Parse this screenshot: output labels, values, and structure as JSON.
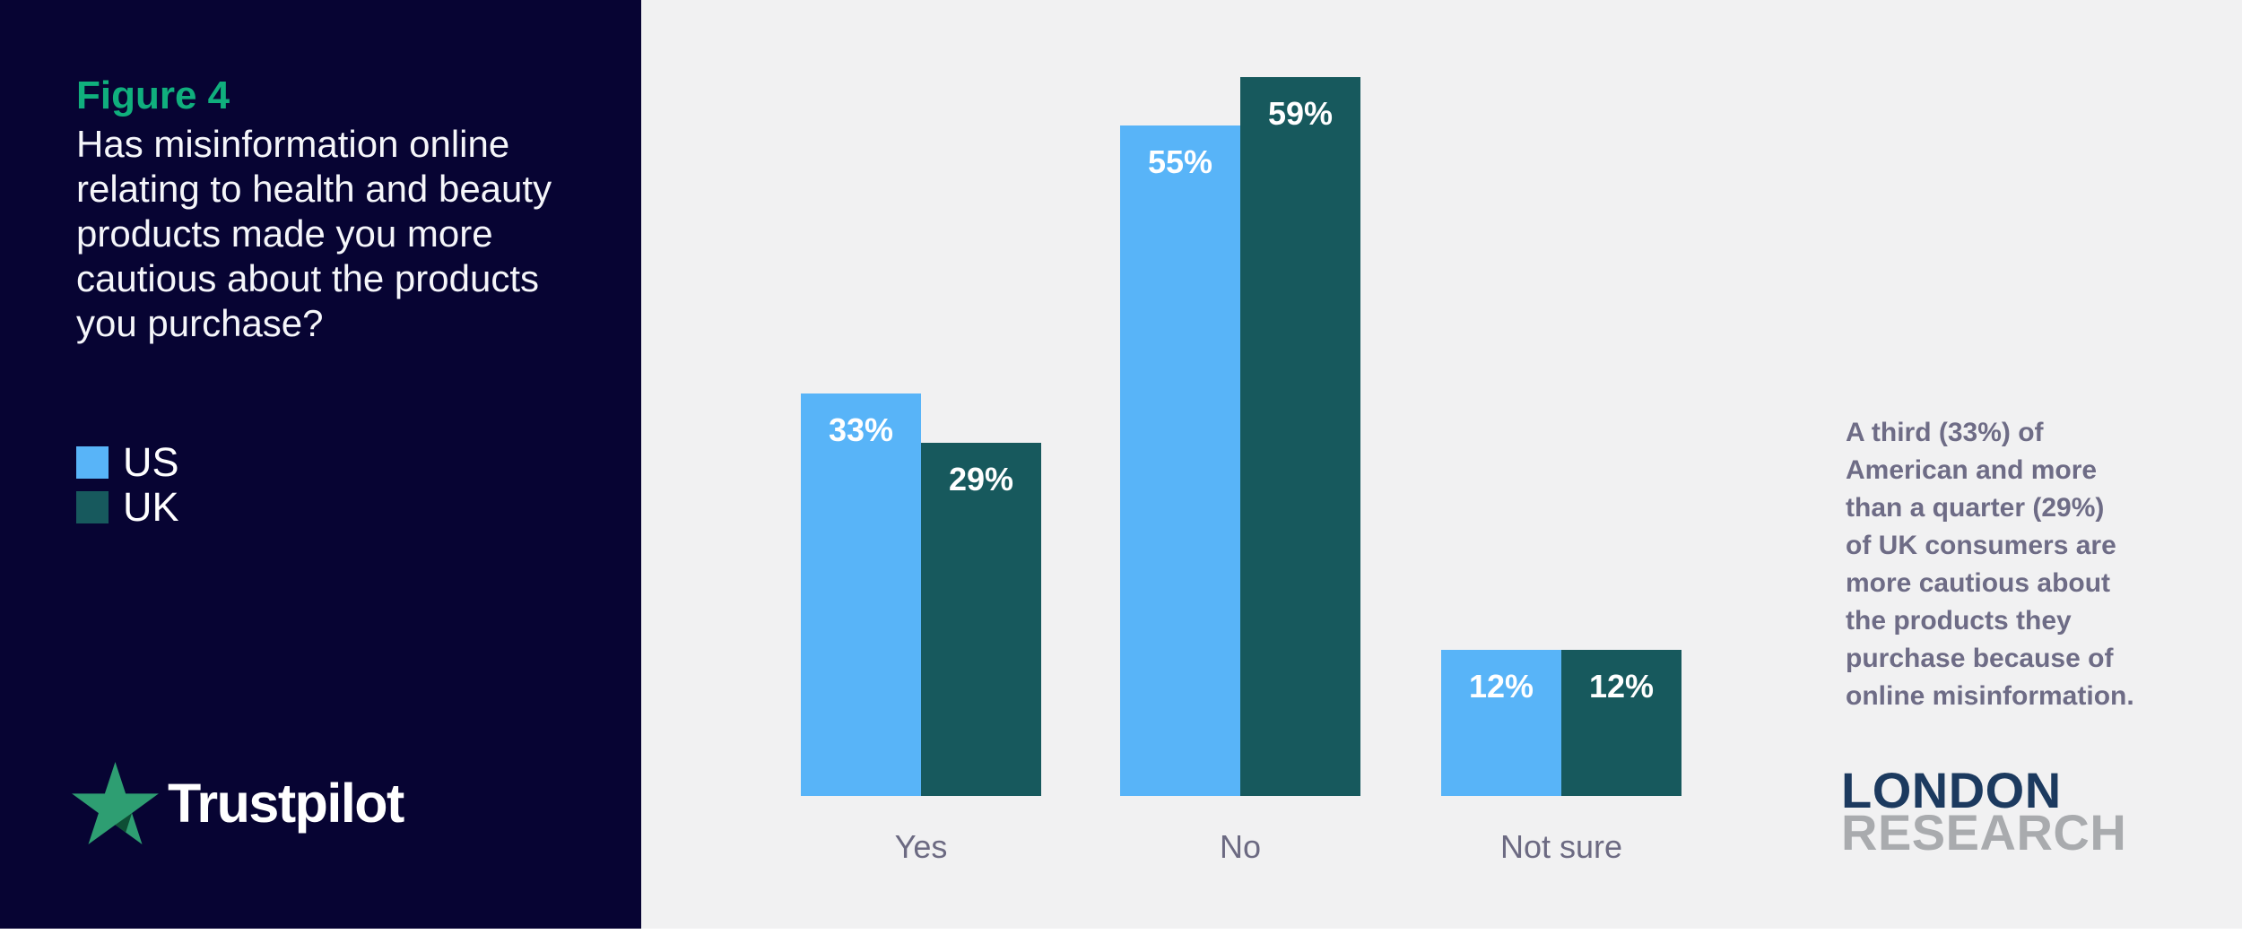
{
  "panel": {
    "figure_label": "Figure 4",
    "question": "Has misinformation online\nrelating to health and beauty\nproducts made you more\ncautious about the products\nyou purchase?",
    "legend": [
      {
        "label": "US",
        "color": "#58B4F8"
      },
      {
        "label": "UK",
        "color": "#17595D"
      }
    ],
    "brand": {
      "name": "Trustpilot",
      "star_color": "#2E9E72",
      "star_shadow_color": "#0E4E35"
    }
  },
  "chart_data": {
    "type": "bar",
    "title": "Has misinformation online relating to health and beauty products made you more cautious about the products you purchase?",
    "categories": [
      "Yes",
      "No",
      "Not sure"
    ],
    "series": [
      {
        "name": "US",
        "color": "#58B4F8",
        "values": [
          33,
          55,
          12
        ]
      },
      {
        "name": "UK",
        "color": "#17595D",
        "values": [
          29,
          59,
          12
        ]
      }
    ],
    "value_suffix": "%",
    "xlabel": "",
    "ylabel": "",
    "ylim": [
      0,
      65
    ],
    "grid": false,
    "axes_visible": false,
    "legend_position": "left-panel",
    "value_labels": "inside-top"
  },
  "annotation": {
    "text": "A third (33%) of\nAmerican and more\nthan a quarter (29%)\nof UK consumers are\nmore cautious about\nthe products they\npurchase because of\nonline misinformation."
  },
  "source_logo": {
    "line1": "LONDON",
    "line2": "RESEARCH",
    "line1_color": "#1C3A5F",
    "line2_color": "#A9ABAE"
  },
  "colors": {
    "panel_bg": "#070433",
    "chart_bg": "#F1F1F2",
    "figure_label": "#10AF7D",
    "question_text": "#F5F6FA",
    "bar_value_label": "#FFFFFF",
    "category_label": "#6C6A82",
    "annotation_text": "#6E6C86"
  }
}
